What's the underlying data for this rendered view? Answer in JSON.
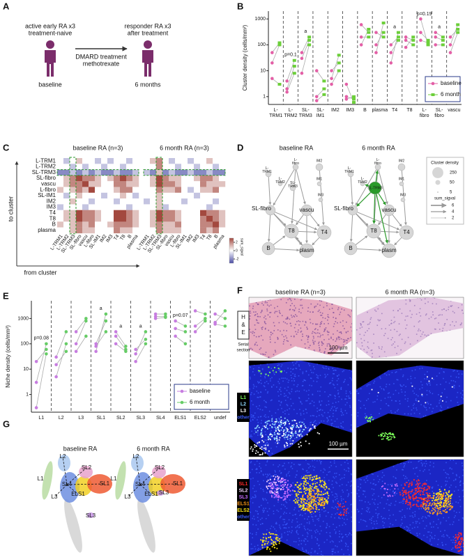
{
  "panel_a": {
    "label": "A",
    "left": [
      "active early RA x3",
      "treatment-naive"
    ],
    "right": [
      "responder RA x3",
      "after treatment"
    ],
    "arrow": [
      "DMARD treatment",
      "methotrexate"
    ],
    "left_caption": "baseline",
    "right_caption": "6 months"
  },
  "chart_data": [
    {
      "type": "dot",
      "panel_label": "B",
      "ylabel": "Cluster density (cells/mm²)",
      "categories": [
        "L-TRM1",
        "L-TRM2",
        "SL-TRM3",
        "SL-IM1",
        "IM2",
        "IM3",
        "B",
        "plasma",
        "T4",
        "T8",
        "L-fibro",
        "SL-fibro",
        "vascu"
      ],
      "annotations": [
        null,
        "p=0.1",
        "a",
        null,
        null,
        null,
        null,
        null,
        "a",
        null,
        "p=0.19",
        "a",
        null
      ],
      "series": [
        {
          "name": "baseline",
          "color": "#e35fa6",
          "marker": "circle",
          "values": [
            [
              20,
              50,
              5
            ],
            [
              2,
              4,
              1.5
            ],
            [
              50,
              30,
              8
            ],
            [
              10,
              1,
              0.7
            ],
            [
              3,
              10,
              5
            ],
            [
              1,
              0.8,
              3
            ],
            [
              600,
              100,
              200
            ],
            [
              50,
              300,
              100
            ],
            [
              100,
              20,
              50
            ],
            [
              200,
              80,
              150
            ],
            [
              1000,
              300,
              150
            ],
            [
              300,
              200,
              100
            ],
            [
              200,
              100,
              50
            ]
          ]
        },
        {
          "name": "6 month",
          "color": "#6ccf3a",
          "marker": "square",
          "values": [
            [
              100,
              120,
              3
            ],
            [
              15,
              25,
              8
            ],
            [
              200,
              150,
              100
            ],
            [
              4,
              2,
              1.2
            ],
            [
              10,
              20,
              40
            ],
            [
              0.8,
              1,
              0.6
            ],
            [
              300,
              400,
              200
            ],
            [
              700,
              200,
              300
            ],
            [
              200,
              300,
              150
            ],
            [
              150,
              200,
              100
            ],
            [
              100,
              150,
              120
            ],
            [
              200,
              150,
              100
            ],
            [
              400,
              600,
              300
            ]
          ]
        }
      ],
      "ylim": [
        0.5,
        2000
      ],
      "yticks": [
        1,
        10,
        100,
        1000
      ],
      "log": true,
      "legend": "lower right"
    },
    {
      "type": "dot",
      "panel_label": "E",
      "ylabel": "Niche density (cells/mm²)",
      "categories": [
        "L1",
        "L2",
        "L3",
        "SL1",
        "SL2",
        "SL3",
        "SL4",
        "ELS1",
        "ELS2",
        "undef"
      ],
      "annotations": [
        "p=0.08",
        null,
        null,
        "a",
        "a",
        "a",
        null,
        "p=0.07",
        null,
        null
      ],
      "series": [
        {
          "name": "baseline",
          "color": "#c77de0",
          "marker": "circle",
          "values": [
            [
              0.3,
              3,
              20
            ],
            [
              5,
              30,
              15
            ],
            [
              300,
              100,
              50
            ],
            [
              50,
              100,
              80
            ],
            [
              300,
              200,
              100
            ],
            [
              20,
              40,
              60
            ],
            [
              1500,
              1200,
              1000
            ],
            [
              800,
              200,
              400
            ],
            [
              2000,
              500,
              300
            ],
            [
              1500,
              700,
              600
            ]
          ]
        },
        {
          "name": "6 month",
          "color": "#66cc66",
          "marker": "circle",
          "values": [
            [
              40,
              100,
              60
            ],
            [
              100,
              300,
              50
            ],
            [
              1000,
              800,
              200
            ],
            [
              1500,
              800,
              300
            ],
            [
              80,
              60,
              50
            ],
            [
              100,
              300,
              150
            ],
            [
              1500,
              1200,
              1100
            ],
            [
              500,
              100,
              300
            ],
            [
              1500,
              1000,
              800
            ],
            [
              1000,
              2000,
              500
            ]
          ]
        }
      ],
      "ylim": [
        0.2,
        5000
      ],
      "yticks": [
        1,
        10,
        100,
        1000
      ],
      "log": true,
      "legend": "lower right"
    }
  ],
  "panel_c": {
    "label": "C",
    "axis_y": "to cluster",
    "axis_x": "from cluster",
    "clusters": [
      "L-TRM1",
      "L-TRM2",
      "SL-TRM3",
      "SL-fibro",
      "vascu",
      "L-fibro",
      "SL-IM1",
      "IM2",
      "IM3",
      "T4",
      "T8",
      "B",
      "plasma"
    ],
    "heatmaps": [
      {
        "title": "baseline RA (n=3)",
        "values": [
          [
            0,
            -1,
            0,
            1,
            0,
            0,
            -1,
            0,
            -1,
            0,
            0,
            -1,
            0
          ],
          [
            0,
            0,
            -1,
            0,
            -1,
            0,
            0,
            -1,
            0,
            0,
            -1,
            0,
            0
          ],
          [
            -2,
            -2,
            -1,
            -2,
            -1,
            -2,
            -1,
            -2,
            -2,
            -1,
            -2,
            -2,
            -1
          ],
          [
            0,
            1,
            2,
            3,
            2,
            2,
            1,
            0,
            1,
            2,
            3,
            2,
            1
          ],
          [
            0,
            1,
            2,
            2,
            3,
            1,
            1,
            0,
            0,
            2,
            2,
            1,
            1
          ],
          [
            1,
            0,
            1,
            2,
            1,
            3,
            0,
            0,
            0,
            1,
            2,
            2,
            0
          ],
          [
            0,
            -1,
            0,
            1,
            0,
            0,
            0,
            -1,
            0,
            0,
            1,
            0,
            -1
          ],
          [
            0,
            0,
            1,
            0,
            0,
            -1,
            0,
            0,
            0,
            -1,
            0,
            0,
            0
          ],
          [
            -1,
            0,
            0,
            0,
            -1,
            0,
            0,
            0,
            0,
            0,
            0,
            -1,
            0
          ],
          [
            0,
            1,
            1,
            3,
            2,
            2,
            1,
            0,
            0,
            3,
            3,
            2,
            1
          ],
          [
            0,
            1,
            1,
            3,
            2,
            2,
            1,
            0,
            0,
            3,
            3,
            2,
            1
          ],
          [
            1,
            0,
            1,
            2,
            1,
            2,
            0,
            0,
            1,
            2,
            2,
            2,
            1
          ],
          [
            0,
            0,
            1,
            2,
            1,
            1,
            0,
            0,
            0,
            2,
            1,
            1,
            0
          ]
        ]
      },
      {
        "title": "6 month RA (n=3)",
        "values": [
          [
            0,
            1,
            2,
            0,
            -1,
            0,
            0,
            -1,
            0,
            0,
            1,
            0,
            0
          ],
          [
            0,
            0,
            2,
            0,
            0,
            -1,
            0,
            0,
            -1,
            0,
            0,
            -1,
            0
          ],
          [
            -1,
            -2,
            1,
            -2,
            -1,
            -2,
            -2,
            -1,
            -2,
            -2,
            -1,
            -2,
            -2
          ],
          [
            0,
            1,
            3,
            2,
            1,
            1,
            0,
            0,
            1,
            2,
            2,
            1,
            0
          ],
          [
            0,
            1,
            3,
            2,
            2,
            1,
            0,
            0,
            0,
            2,
            1,
            1,
            1
          ],
          [
            0,
            0,
            2,
            1,
            1,
            2,
            0,
            -1,
            0,
            1,
            1,
            2,
            0
          ],
          [
            0,
            0,
            1,
            0,
            0,
            0,
            0,
            0,
            -1,
            0,
            0,
            0,
            0
          ],
          [
            -1,
            0,
            1,
            0,
            0,
            0,
            -1,
            0,
            0,
            0,
            0,
            -1,
            0
          ],
          [
            0,
            0,
            1,
            -1,
            0,
            0,
            0,
            0,
            0,
            0,
            -1,
            0,
            0
          ],
          [
            0,
            1,
            3,
            2,
            2,
            1,
            0,
            0,
            0,
            3,
            2,
            2,
            1
          ],
          [
            0,
            1,
            3,
            2,
            2,
            1,
            0,
            0,
            0,
            2,
            3,
            2,
            1
          ],
          [
            0,
            1,
            2,
            1,
            1,
            2,
            0,
            0,
            0,
            2,
            2,
            3,
            1
          ],
          [
            0,
            0,
            2,
            1,
            1,
            1,
            0,
            0,
            0,
            2,
            1,
            2,
            0
          ]
        ]
      }
    ],
    "colorbar": {
      "title": "sum_sigval",
      "range": [
        -3,
        3
      ],
      "ticks": [
        -2,
        0,
        2
      ],
      "colors": [
        "#4d4fa6",
        "#ffffff",
        "#a3493f"
      ]
    }
  },
  "panel_d": {
    "label": "D",
    "graphs": [
      {
        "title": "baseline RA",
        "nodes": [
          "L-TRM1",
          "L-fibro",
          "IM2",
          "L-TRM2",
          "SL-TRM3",
          "IM1",
          "IM3",
          "SL-fibro",
          "vascu",
          "T8",
          "T4",
          "B",
          "plasm"
        ]
      },
      {
        "title": "6 month RA",
        "nodes": [
          "L-TRM1",
          "L-fibro",
          "IM2",
          "L-TRM2",
          "SL-TRM3",
          "IM1",
          "IM3",
          "SL-fibro",
          "vascu",
          "T8",
          "T4",
          "B",
          "plasm"
        ]
      }
    ],
    "legend": {
      "size_title": "Cluster density",
      "sizes": [
        250,
        50,
        5
      ],
      "edge_title": "sum_sigval",
      "edges": [
        6,
        4,
        2
      ]
    }
  },
  "panel_f": {
    "label": "F",
    "titles": [
      "baseline RA (n=3)",
      "6 month RA (n=3)"
    ],
    "he_label": [
      "H",
      "&",
      "E"
    ],
    "serial_label": [
      "Serial",
      "section"
    ],
    "scale_bars": [
      "100 µm",
      "100 µm"
    ],
    "legend_l": [
      {
        "name": "L1",
        "color": "#7dff5a"
      },
      {
        "name": "L2",
        "color": "#8fd8ff"
      },
      {
        "name": "L3",
        "color": "#ffffff"
      },
      {
        "name": "other",
        "color": "#3a5cff"
      }
    ],
    "legend_sl": [
      {
        "name": "SL1",
        "color": "#ff2a2a"
      },
      {
        "name": "SL2",
        "color": "#f4d4ff"
      },
      {
        "name": "SL3",
        "color": "#c46cff"
      },
      {
        "name": "ELS1",
        "color": "#ff9a1a"
      },
      {
        "name": "ELS2",
        "color": "#ffe81a"
      },
      {
        "name": "other",
        "color": "#3a5cff"
      }
    ]
  },
  "panel_g": {
    "label": "G",
    "titles": [
      "baseline RA",
      "6 month RA"
    ],
    "niches": [
      [
        "L1",
        "L2",
        "L3",
        "SL1",
        "SL2",
        "SL3",
        "SL4",
        "ELS1"
      ],
      [
        "L1",
        "L2",
        "L3",
        "SL1",
        "SL2",
        "SL3",
        "SL4",
        "ELS1"
      ]
    ]
  }
}
